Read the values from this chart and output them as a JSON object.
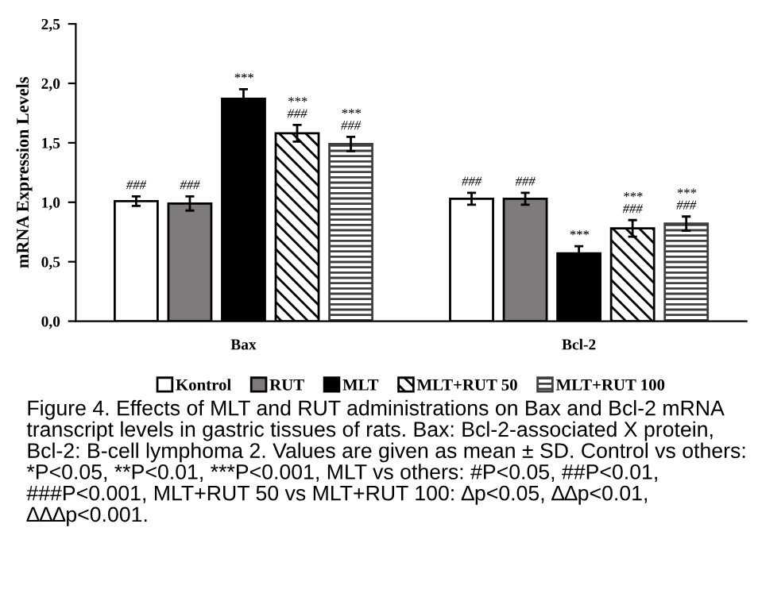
{
  "chart_data": {
    "type": "bar",
    "ylabel": "mRNA Expression Levels",
    "categories": [
      "Bax",
      "Bcl-2"
    ],
    "series": [
      {
        "name": "Kontrol",
        "color": "#ffffff",
        "values": [
          1.01,
          1.03
        ],
        "errors": [
          0.04,
          0.05
        ],
        "value_labels": [
          "###",
          "###"
        ]
      },
      {
        "name": "RUT",
        "color": "#7f7b7b",
        "values": [
          0.99,
          1.03
        ],
        "errors": [
          0.06,
          0.05
        ],
        "value_labels": [
          "###",
          "###"
        ]
      },
      {
        "name": "MLT",
        "color": "#000000",
        "values": [
          1.87,
          0.57
        ],
        "errors": [
          0.08,
          0.06
        ],
        "value_labels": [
          "***",
          "***"
        ]
      },
      {
        "name": "MLT+RUT 50",
        "color": "#000000",
        "values": [
          1.58,
          0.78
        ],
        "errors": [
          0.07,
          0.07
        ],
        "value_labels": [
          "***\n###",
          "***\n###"
        ]
      },
      {
        "name": "MLT+RUT 100",
        "color": "#404040",
        "values": [
          1.49,
          0.82
        ],
        "errors": [
          0.06,
          0.06
        ],
        "value_labels": [
          "***\n###",
          "***\n###"
        ]
      }
    ],
    "ylim": [
      0,
      2.5
    ],
    "yticks": [
      {
        "value": 0,
        "label": "0,0"
      },
      {
        "value": 0.5,
        "label": "0,5"
      },
      {
        "value": 1.0,
        "label": "1,0"
      },
      {
        "value": 1.5,
        "label": "1,5"
      },
      {
        "value": 2.0,
        "label": "2,0"
      },
      {
        "value": 2.5,
        "label": "2,5"
      }
    ],
    "grid": false,
    "legend": "bottom",
    "annotations": [
      "Figure 4. Effects of MLT and RUT administrations on Bax and Bcl-2 mRNA transcript levels in gastric tissues of rats. Bax: Bcl-2-associated X protein, Bcl-2: B-cell lymphoma 2. Values are given as mean ± SD. Control vs others: *P<0.05, **P<0.01, ***P<0.001, MLT vs others: #P<0.05, ##P<0.01, ###P<0.001, MLT+RUT 50 vs MLT+RUT 100: ∆p<0.05, ∆∆p<0.01, ∆∆∆p<0.001."
    ]
  }
}
